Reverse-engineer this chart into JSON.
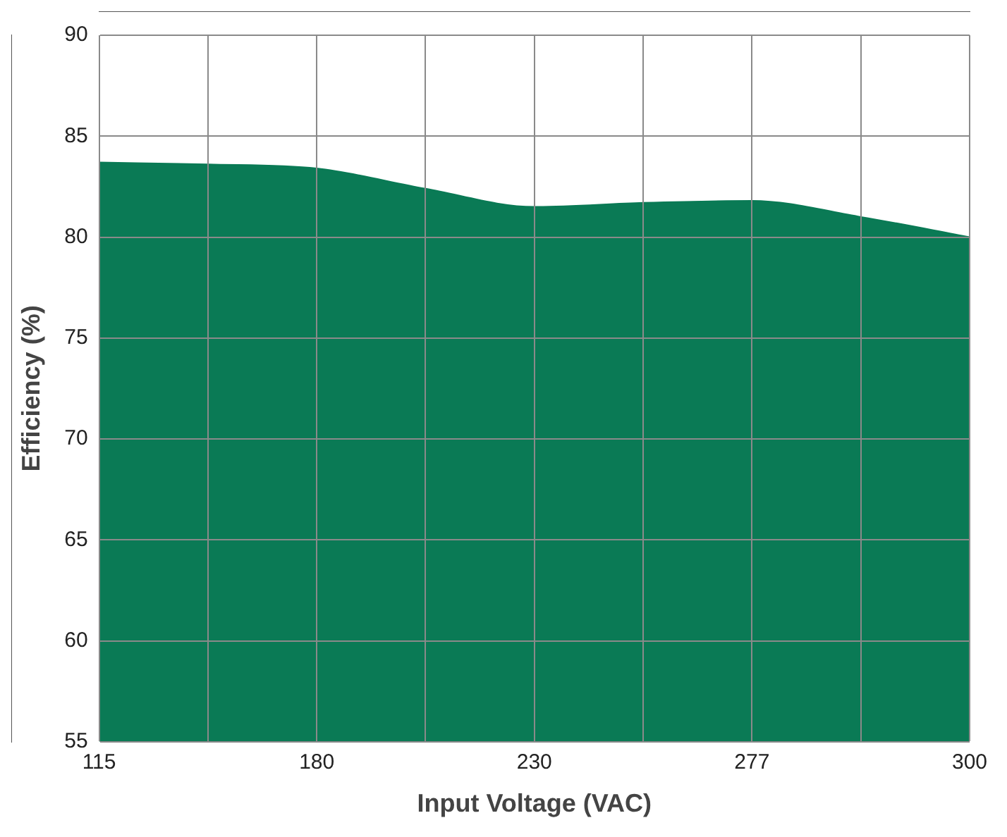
{
  "chart_data": {
    "type": "area",
    "xlabel": "Input Voltage (VAC)",
    "ylabel": "Efficiency (%)",
    "categories": [
      "115",
      null,
      "180",
      null,
      "230",
      null,
      "277",
      null,
      "300"
    ],
    "values": [
      83.7,
      83.6,
      83.4,
      82.4,
      81.5,
      81.7,
      81.8,
      81.0,
      80.0
    ],
    "color": "#0a7a55",
    "ylim": [
      55,
      90
    ],
    "yticks": [
      55,
      60,
      65,
      70,
      75,
      80,
      85,
      90
    ],
    "grid": true
  }
}
